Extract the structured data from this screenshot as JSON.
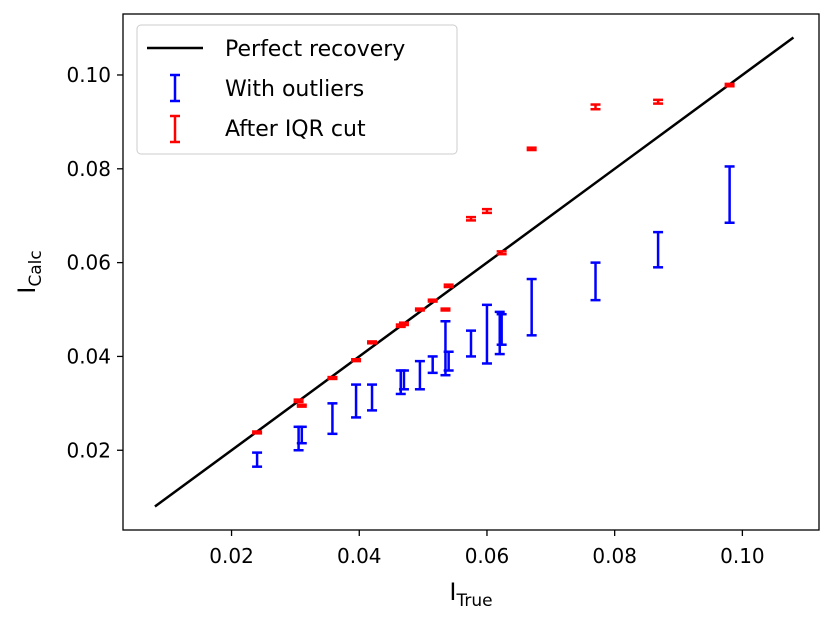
{
  "chart_data": {
    "type": "errorbar-scatter",
    "xlabel": {
      "base": "I",
      "sub": "True"
    },
    "ylabel": {
      "base": "I",
      "sub": "Calc"
    },
    "xlim": [
      0.003,
      0.112
    ],
    "ylim": [
      0.003,
      0.113
    ],
    "xticks": [
      0.02,
      0.04,
      0.06,
      0.08,
      0.1
    ],
    "xtick_labels": [
      "0.02",
      "0.04",
      "0.06",
      "0.08",
      "0.10"
    ],
    "yticks": [
      0.02,
      0.04,
      0.06,
      0.08,
      0.1
    ],
    "ytick_labels": [
      "0.02",
      "0.04",
      "0.06",
      "0.08",
      "0.10"
    ],
    "legend": {
      "position": "upper-left",
      "entries": [
        {
          "label": "Perfect recovery",
          "kind": "line",
          "color": "#000000"
        },
        {
          "label": "With outliers",
          "kind": "errorbar",
          "color": "#0000ff"
        },
        {
          "label": "After IQR cut",
          "kind": "errorbar",
          "color": "#ff0000"
        }
      ]
    },
    "line": {
      "name": "Perfect recovery",
      "color": "#000000",
      "x": [
        0.008,
        0.108
      ],
      "y": [
        0.008,
        0.108
      ]
    },
    "series": [
      {
        "name": "With outliers",
        "color": "#0000ff",
        "points": [
          {
            "x": 0.024,
            "lo": 0.0165,
            "hi": 0.0195
          },
          {
            "x": 0.0305,
            "lo": 0.02,
            "hi": 0.025
          },
          {
            "x": 0.031,
            "lo": 0.0215,
            "hi": 0.025
          },
          {
            "x": 0.0358,
            "lo": 0.0235,
            "hi": 0.03
          },
          {
            "x": 0.0395,
            "lo": 0.027,
            "hi": 0.034
          },
          {
            "x": 0.042,
            "lo": 0.0285,
            "hi": 0.034
          },
          {
            "x": 0.0465,
            "lo": 0.032,
            "hi": 0.037
          },
          {
            "x": 0.047,
            "lo": 0.033,
            "hi": 0.037
          },
          {
            "x": 0.0495,
            "lo": 0.033,
            "hi": 0.039
          },
          {
            "x": 0.0515,
            "lo": 0.0365,
            "hi": 0.04
          },
          {
            "x": 0.0535,
            "lo": 0.036,
            "hi": 0.0475
          },
          {
            "x": 0.054,
            "lo": 0.037,
            "hi": 0.041
          },
          {
            "x": 0.0575,
            "lo": 0.04,
            "hi": 0.0455
          },
          {
            "x": 0.06,
            "lo": 0.0385,
            "hi": 0.051
          },
          {
            "x": 0.062,
            "lo": 0.0405,
            "hi": 0.0495
          },
          {
            "x": 0.0623,
            "lo": 0.0425,
            "hi": 0.049
          },
          {
            "x": 0.067,
            "lo": 0.0445,
            "hi": 0.0565
          },
          {
            "x": 0.077,
            "lo": 0.052,
            "hi": 0.06
          },
          {
            "x": 0.0868,
            "lo": 0.059,
            "hi": 0.0665
          },
          {
            "x": 0.098,
            "lo": 0.0685,
            "hi": 0.0805
          }
        ]
      },
      {
        "name": "After IQR cut",
        "color": "#ff0000",
        "points": [
          {
            "x": 0.024,
            "lo": 0.0236,
            "hi": 0.024
          },
          {
            "x": 0.0305,
            "lo": 0.0303,
            "hi": 0.0308
          },
          {
            "x": 0.031,
            "lo": 0.0293,
            "hi": 0.0297
          },
          {
            "x": 0.0358,
            "lo": 0.0352,
            "hi": 0.0356
          },
          {
            "x": 0.0395,
            "lo": 0.039,
            "hi": 0.0394
          },
          {
            "x": 0.042,
            "lo": 0.0428,
            "hi": 0.0432
          },
          {
            "x": 0.0465,
            "lo": 0.0463,
            "hi": 0.0468
          },
          {
            "x": 0.047,
            "lo": 0.0467,
            "hi": 0.0472
          },
          {
            "x": 0.0495,
            "lo": 0.0498,
            "hi": 0.0502
          },
          {
            "x": 0.0515,
            "lo": 0.0517,
            "hi": 0.0521
          },
          {
            "x": 0.0535,
            "lo": 0.0498,
            "hi": 0.0502
          },
          {
            "x": 0.054,
            "lo": 0.0548,
            "hi": 0.0553
          },
          {
            "x": 0.0575,
            "lo": 0.069,
            "hi": 0.0697
          },
          {
            "x": 0.06,
            "lo": 0.0706,
            "hi": 0.0714
          },
          {
            "x": 0.0623,
            "lo": 0.0618,
            "hi": 0.0624
          },
          {
            "x": 0.067,
            "lo": 0.084,
            "hi": 0.0845
          },
          {
            "x": 0.077,
            "lo": 0.0927,
            "hi": 0.0937
          },
          {
            "x": 0.0868,
            "lo": 0.0939,
            "hi": 0.0947
          },
          {
            "x": 0.098,
            "lo": 0.0976,
            "hi": 0.0981
          }
        ]
      }
    ]
  }
}
